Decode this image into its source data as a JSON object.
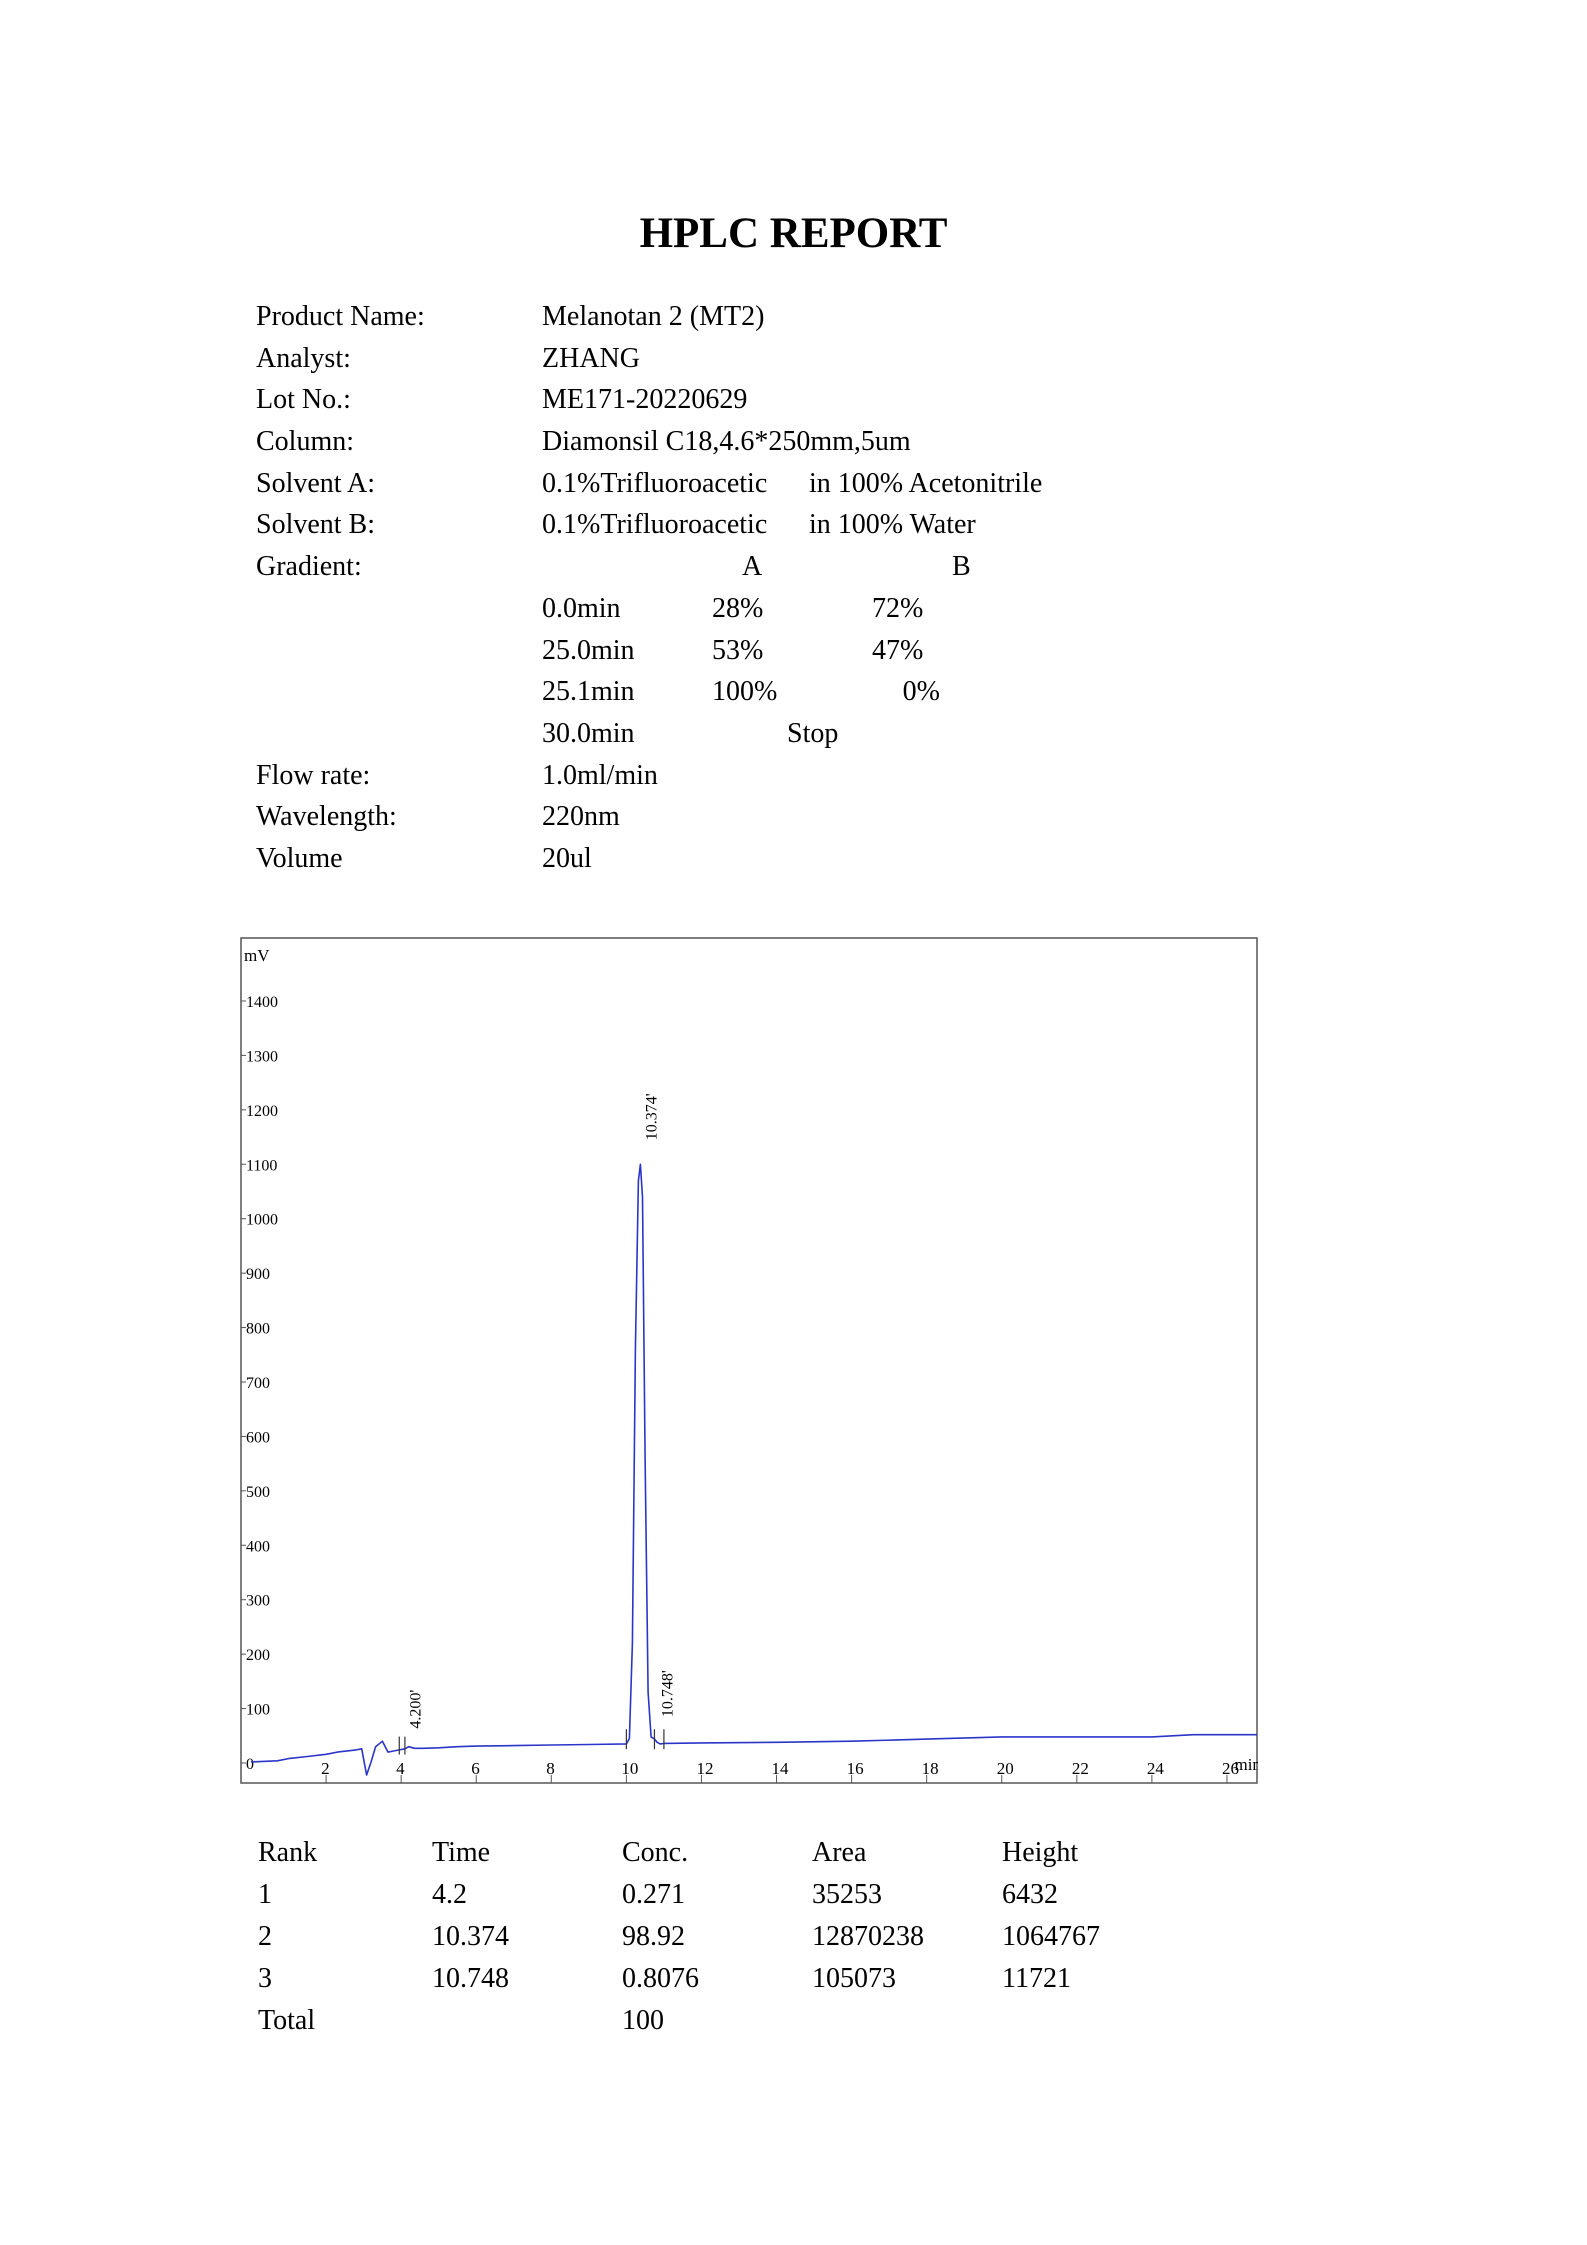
{
  "report": {
    "title": "HPLC REPORT"
  },
  "info": {
    "product_name": {
      "label": "Product Name:",
      "value": "Melanotan 2 (MT2)"
    },
    "analyst": {
      "label": "Analyst:",
      "value": "ZHANG"
    },
    "lot_no": {
      "label": "Lot No.:",
      "value": "ME171-20220629"
    },
    "column": {
      "label": "Column:",
      "value": "Diamonsil C18,4.6*250mm,5um"
    },
    "solvent_a": {
      "label": "Solvent A:",
      "value1": "0.1%Trifluoroacetic",
      "value2": "in 100% Acetonitrile"
    },
    "solvent_b": {
      "label": "Solvent B:",
      "value1": "0.1%Trifluoroacetic",
      "value2": "in 100% Water"
    },
    "gradient": {
      "label": "Gradient:",
      "col_a": "A",
      "col_b": "B",
      "rows": [
        {
          "time": "0.0min",
          "a": "28%",
          "b": "72%"
        },
        {
          "time": "25.0min",
          "a": "53%",
          "b": "47%"
        },
        {
          "time": "25.1min",
          "a": "100%",
          "b": "0%"
        }
      ],
      "stop": {
        "time": "30.0min",
        "label": "Stop"
      }
    },
    "flow_rate": {
      "label": "Flow rate:",
      "value": "1.0ml/min"
    },
    "wavelength": {
      "label": "Wavelength:",
      "value": "220nm"
    },
    "volume": {
      "label": "Volume",
      "value": "20ul"
    }
  },
  "chart_data": {
    "type": "line",
    "ylabel": "mV",
    "xlabel": "min",
    "xlim": [
      0,
      26.8
    ],
    "ylim": [
      -20,
      1480
    ],
    "y_ticks": [
      0,
      100,
      200,
      300,
      400,
      500,
      600,
      700,
      800,
      900,
      1000,
      1100,
      1200,
      1300,
      1400
    ],
    "x_ticks": [
      2,
      4,
      6,
      8,
      10,
      12,
      14,
      16,
      18,
      20,
      22,
      24,
      26
    ],
    "grid": false,
    "line_color": "#2b35c8",
    "series": [
      {
        "x": [
          0,
          0.7,
          1.0,
          1.5,
          2.0,
          2.3,
          2.8,
          2.95,
          3.08,
          3.2,
          3.32,
          3.5,
          3.65,
          3.8,
          3.95,
          4.1,
          4.2,
          4.35,
          4.6,
          5.0,
          5.5,
          6.0,
          7.0,
          8.0,
          9.0,
          10.0,
          10.08,
          10.16,
          10.24,
          10.32,
          10.374,
          10.43,
          10.5,
          10.58,
          10.66,
          10.748,
          10.82,
          10.9,
          11.0,
          12.0,
          14.0,
          16.0,
          18.0,
          20.0,
          22.0,
          24.0,
          25.1,
          26.8
        ],
        "y": [
          2,
          4,
          8,
          12,
          16,
          20,
          24,
          26,
          -22,
          2,
          30,
          40,
          20,
          22,
          24,
          26,
          30,
          27,
          27,
          28,
          30,
          31,
          32,
          33,
          34,
          35,
          45,
          220,
          760,
          1070,
          1100,
          1040,
          560,
          130,
          48,
          44,
          38,
          35,
          36,
          37,
          38,
          40,
          44,
          48,
          48,
          48,
          52,
          52
        ]
      }
    ],
    "peak_labels": [
      {
        "x": 4.2,
        "y": 27,
        "text": "4.200'"
      },
      {
        "x": 10.374,
        "y": 1100,
        "text": "10.374'"
      },
      {
        "x": 10.748,
        "y": 44,
        "text": "10.748'"
      }
    ]
  },
  "results": {
    "headers": [
      "Rank",
      "Time",
      "Conc.",
      "Area",
      "Height"
    ],
    "rows": [
      [
        "1",
        "4.2",
        "0.271",
        "35253",
        "6432"
      ],
      [
        "2",
        "10.374",
        "98.92",
        "12870238",
        "1064767"
      ],
      [
        "3",
        "10.748",
        "0.8076",
        "105073",
        "11721"
      ],
      [
        "Total",
        "",
        "100",
        "",
        ""
      ]
    ]
  }
}
